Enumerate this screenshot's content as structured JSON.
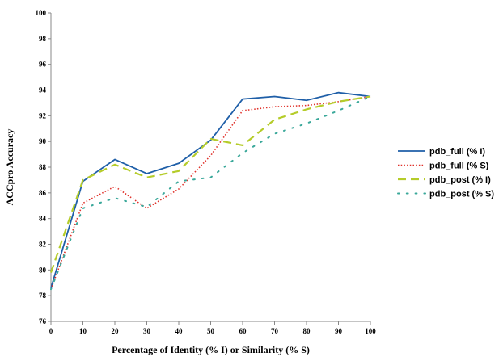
{
  "chart_data": {
    "type": "line",
    "xlabel": "Percentage of Identity (% I) or Similarity (% S)",
    "ylabel": "ACCpro Accuracy",
    "xlim": [
      0,
      100
    ],
    "ylim": [
      76,
      100
    ],
    "x_ticks": [
      0,
      10,
      20,
      30,
      40,
      50,
      60,
      70,
      80,
      90,
      100
    ],
    "y_ticks": [
      76,
      78,
      80,
      82,
      84,
      86,
      88,
      90,
      92,
      94,
      96,
      98,
      100
    ],
    "grid": false,
    "legend_position": "right",
    "x": [
      0,
      10,
      20,
      30,
      40,
      50,
      60,
      70,
      80,
      90,
      100
    ],
    "series": [
      {
        "name": "pdb_full (% I)",
        "color": "#1f5fa8",
        "style": "solid",
        "values": [
          78.6,
          86.9,
          88.6,
          87.5,
          88.3,
          90.1,
          93.3,
          93.5,
          93.2,
          93.8,
          93.5
        ]
      },
      {
        "name": "pdb_full (% S)",
        "color": "#e0312a",
        "style": "dotted",
        "values": [
          78.5,
          85.2,
          86.5,
          84.8,
          86.3,
          88.9,
          92.4,
          92.7,
          92.8,
          93.1,
          93.5
        ]
      },
      {
        "name": "pdb_post (% I)",
        "color": "#b5cc2a",
        "style": "dashed",
        "values": [
          79.8,
          87.0,
          88.2,
          87.2,
          87.7,
          90.2,
          89.7,
          91.7,
          92.5,
          93.1,
          93.5
        ]
      },
      {
        "name": "pdb_post (% S)",
        "color": "#3aa89a",
        "style": "spaced-dots",
        "values": [
          78.5,
          84.8,
          85.6,
          84.9,
          86.9,
          87.2,
          89.1,
          90.6,
          91.4,
          92.4,
          93.5
        ]
      }
    ]
  }
}
